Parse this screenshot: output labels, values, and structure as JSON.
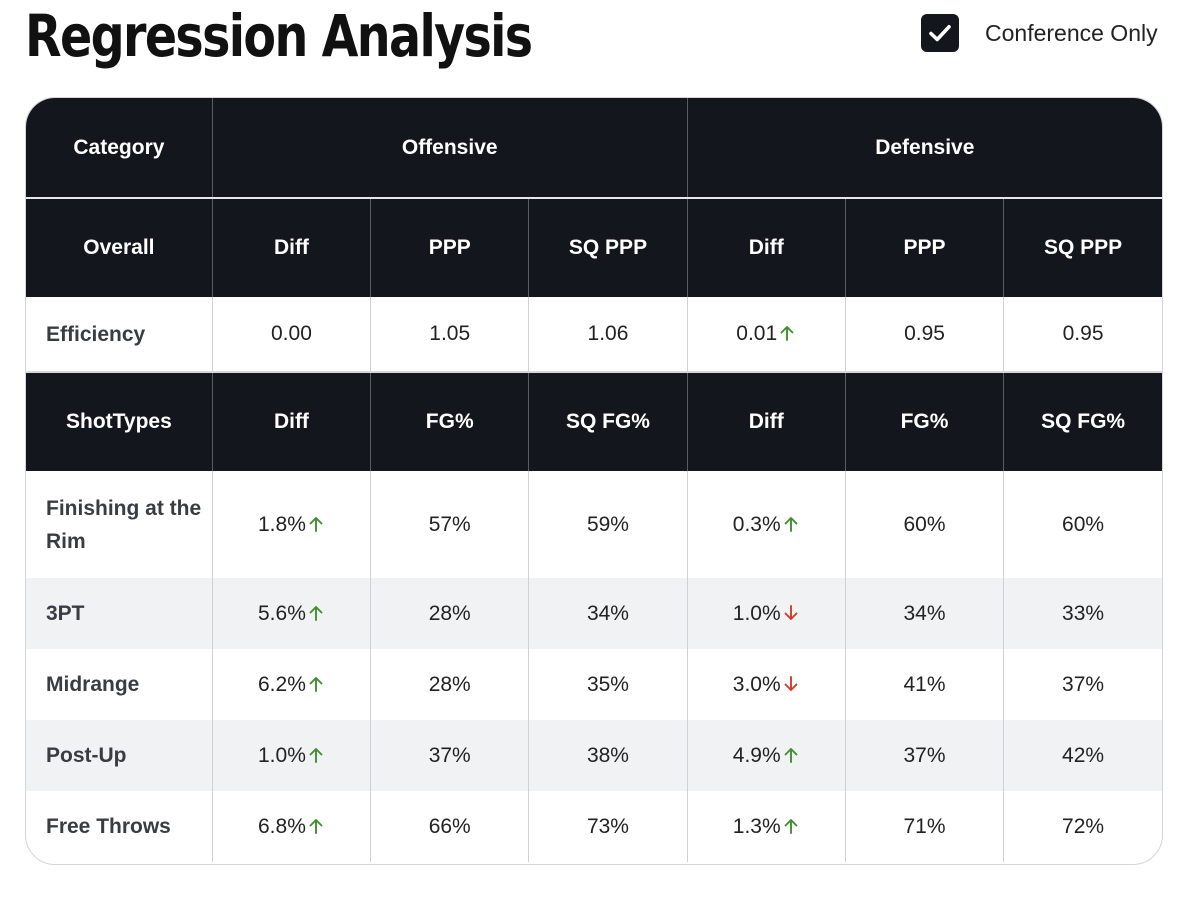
{
  "header": {
    "title": "Regression Analysis",
    "conference_toggle": {
      "label": "Conference Only",
      "checked": true
    }
  },
  "table": {
    "top_headers": [
      "Category",
      "Offensive",
      "Defensive"
    ],
    "overall_headers": [
      "Overall",
      "Diff",
      "PPP",
      "SQ PPP",
      "Diff",
      "PPP",
      "SQ PPP"
    ],
    "efficiency_row": {
      "label": "Efficiency",
      "cells": [
        {
          "value": "0.00",
          "trend": ""
        },
        {
          "value": "1.05",
          "trend": ""
        },
        {
          "value": "1.06",
          "trend": ""
        },
        {
          "value": "0.01",
          "trend": "up"
        },
        {
          "value": "0.95",
          "trend": ""
        },
        {
          "value": "0.95",
          "trend": ""
        }
      ]
    },
    "shot_headers": [
      "ShotTypes",
      "Diff",
      "FG%",
      "SQ FG%",
      "Diff",
      "FG%",
      "SQ FG%"
    ],
    "shot_rows": [
      {
        "label": "Finishing at the Rim",
        "cells": [
          {
            "value": "1.8%",
            "trend": "up"
          },
          {
            "value": "57%",
            "trend": ""
          },
          {
            "value": "59%",
            "trend": ""
          },
          {
            "value": "0.3%",
            "trend": "up"
          },
          {
            "value": "60%",
            "trend": ""
          },
          {
            "value": "60%",
            "trend": ""
          }
        ]
      },
      {
        "label": "3PT",
        "cells": [
          {
            "value": "5.6%",
            "trend": "up"
          },
          {
            "value": "28%",
            "trend": ""
          },
          {
            "value": "34%",
            "trend": ""
          },
          {
            "value": "1.0%",
            "trend": "down"
          },
          {
            "value": "34%",
            "trend": ""
          },
          {
            "value": "33%",
            "trend": ""
          }
        ]
      },
      {
        "label": "Midrange",
        "cells": [
          {
            "value": "6.2%",
            "trend": "up"
          },
          {
            "value": "28%",
            "trend": ""
          },
          {
            "value": "35%",
            "trend": ""
          },
          {
            "value": "3.0%",
            "trend": "down"
          },
          {
            "value": "41%",
            "trend": ""
          },
          {
            "value": "37%",
            "trend": ""
          }
        ]
      },
      {
        "label": "Post-Up",
        "cells": [
          {
            "value": "1.0%",
            "trend": "up"
          },
          {
            "value": "37%",
            "trend": ""
          },
          {
            "value": "38%",
            "trend": ""
          },
          {
            "value": "4.9%",
            "trend": "up"
          },
          {
            "value": "37%",
            "trend": ""
          },
          {
            "value": "42%",
            "trend": ""
          }
        ]
      },
      {
        "label": "Free Throws",
        "cells": [
          {
            "value": "6.8%",
            "trend": "up"
          },
          {
            "value": "66%",
            "trend": ""
          },
          {
            "value": "73%",
            "trend": ""
          },
          {
            "value": "1.3%",
            "trend": "up"
          },
          {
            "value": "71%",
            "trend": ""
          },
          {
            "value": "72%",
            "trend": ""
          }
        ]
      }
    ]
  },
  "colors": {
    "header_bg": "#14161e",
    "up_arrow": "#3f8f2f",
    "down_arrow": "#d23b2b",
    "alt_row": "#f1f2f4"
  }
}
